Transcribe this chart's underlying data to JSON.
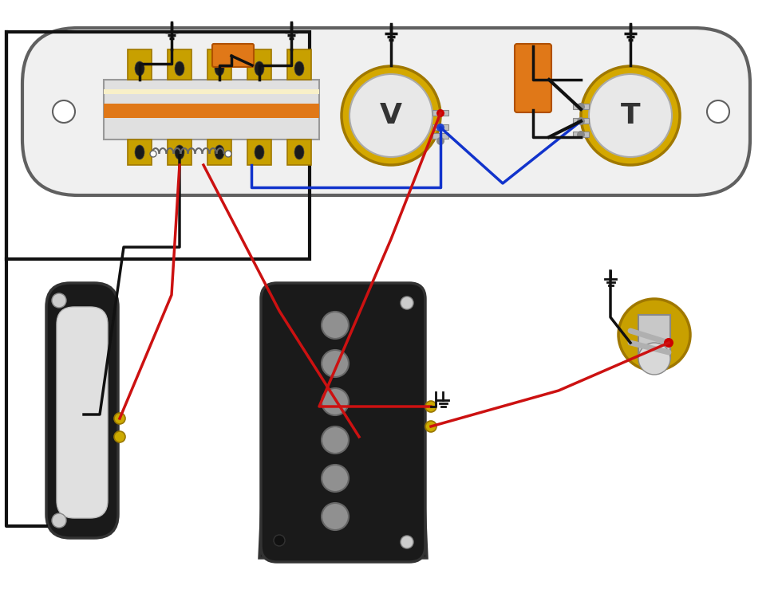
{
  "bg": "#ffffff",
  "plate_fill": "#f0f0f0",
  "plate_stroke": "#606060",
  "orange": "#e07818",
  "gold": "#c8a000",
  "dark_gold": "#a07800",
  "knob_gold": "#d4a800",
  "knob_face": "#e8e8e8",
  "black": "#111111",
  "red": "#cc1111",
  "blue": "#1133cc",
  "yellow_dot": "#ccaa00",
  "pickup_body": "#1a1a1a",
  "neck_cover": "#e0e0e0",
  "pole_gray": "#909090",
  "jack_gold": "#c8a000",
  "jack_silver": "#aaaaaa",
  "lug_gold": "#c8a000",
  "sw_bg": "#d0d0d0",
  "sw_stripe": "#e07818",
  "spring_col": "#666666",
  "screw_gray": "#888888",
  "lug_hole": "#222222",
  "red_dot": "#cc0000",
  "blue_dot": "#2244cc"
}
